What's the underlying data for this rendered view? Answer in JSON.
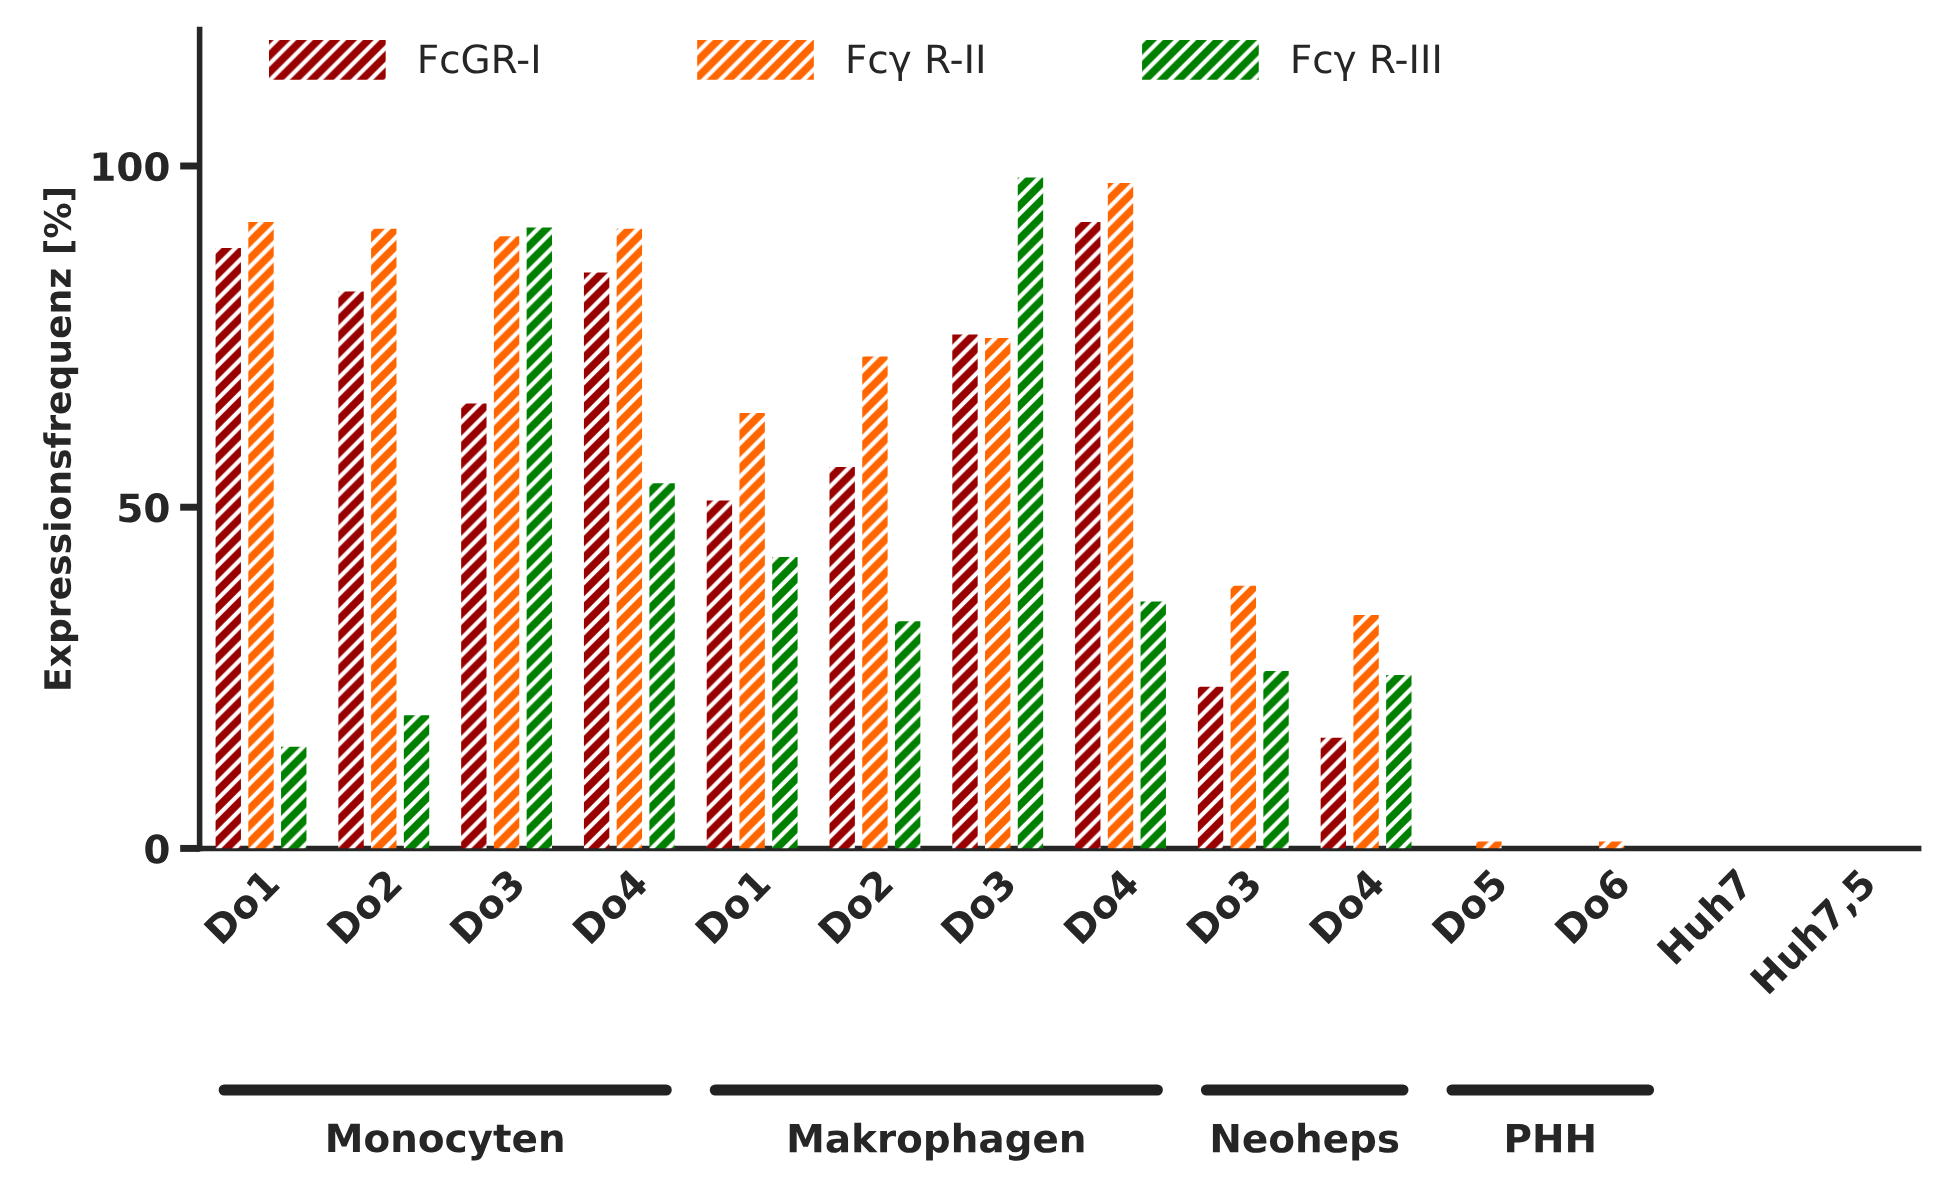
{
  "chart_data": {
    "type": "bar",
    "ylabel": "Expressionsfrequenz [%]",
    "categories": [
      "Do1",
      "Do2",
      "Do3",
      "Do4",
      "Do1",
      "Do2",
      "Do3",
      "Do4",
      "Do3",
      "Do4",
      "Do5",
      "Do6",
      "Huh7",
      "Huh7,5"
    ],
    "series": [
      {
        "name": "FcGR-I",
        "color": "#990000",
        "values": [
          88,
          81.6,
          65.2,
          84.4,
          51,
          55.9,
          75.3,
          91.8,
          23.7,
          16.2,
          0,
          0,
          0,
          0
        ]
      },
      {
        "name": "Fcγ R-II",
        "color": "#ff6600",
        "values": [
          91.8,
          90.8,
          89.7,
          90.8,
          63.8,
          72.1,
          74.8,
          97.5,
          38.5,
          34.2,
          1,
          1,
          0,
          0
        ]
      },
      {
        "name": "Fcγ R-III",
        "color": "#008000",
        "values": [
          14.9,
          19.5,
          91,
          53.5,
          42.7,
          33.3,
          98.3,
          36.2,
          26,
          25.4,
          0,
          0,
          0,
          0
        ]
      }
    ],
    "ylim": [
      0,
      120
    ],
    "yticks": [
      0,
      50,
      100
    ],
    "grid": false,
    "legend": "top",
    "annotations": [
      "Monocyten",
      "Makrophagen",
      "Neoheps",
      "PHH"
    ]
  }
}
